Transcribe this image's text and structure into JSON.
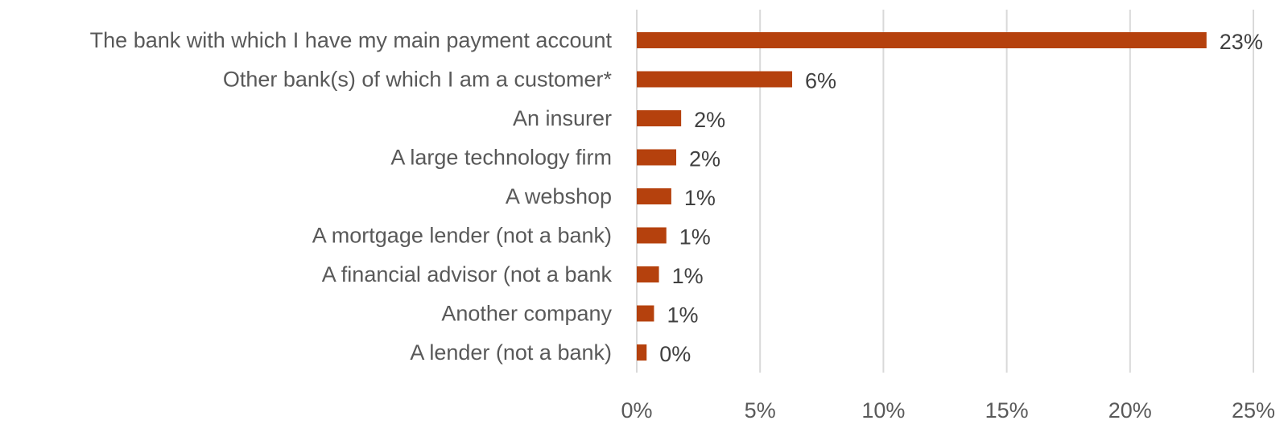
{
  "chart_data": {
    "type": "bar",
    "orientation": "horizontal",
    "categories": [
      "The bank with which I have my main payment account",
      "Other bank(s)  of which I am a customer*",
      "An insurer",
      "A large technology firm",
      "A webshop",
      "A mortgage lender (not a bank)",
      "A financial advisor (not a bank",
      "Another company",
      "A lender (not a bank)"
    ],
    "values": [
      23.1,
      6.3,
      1.8,
      1.6,
      1.4,
      1.2,
      0.9,
      0.7,
      0.4
    ],
    "value_labels": [
      "23%",
      "6%",
      "2%",
      "2%",
      "1%",
      "1%",
      "1%",
      "1%",
      "0%"
    ],
    "xlim": [
      0,
      25
    ],
    "x_ticks": [
      0,
      5,
      10,
      15,
      20,
      25
    ],
    "x_tick_labels": [
      "0%",
      "5%",
      "10%",
      "15%",
      "20%",
      "25%"
    ],
    "grid": "vertical",
    "bar_color": "#B5410D"
  }
}
